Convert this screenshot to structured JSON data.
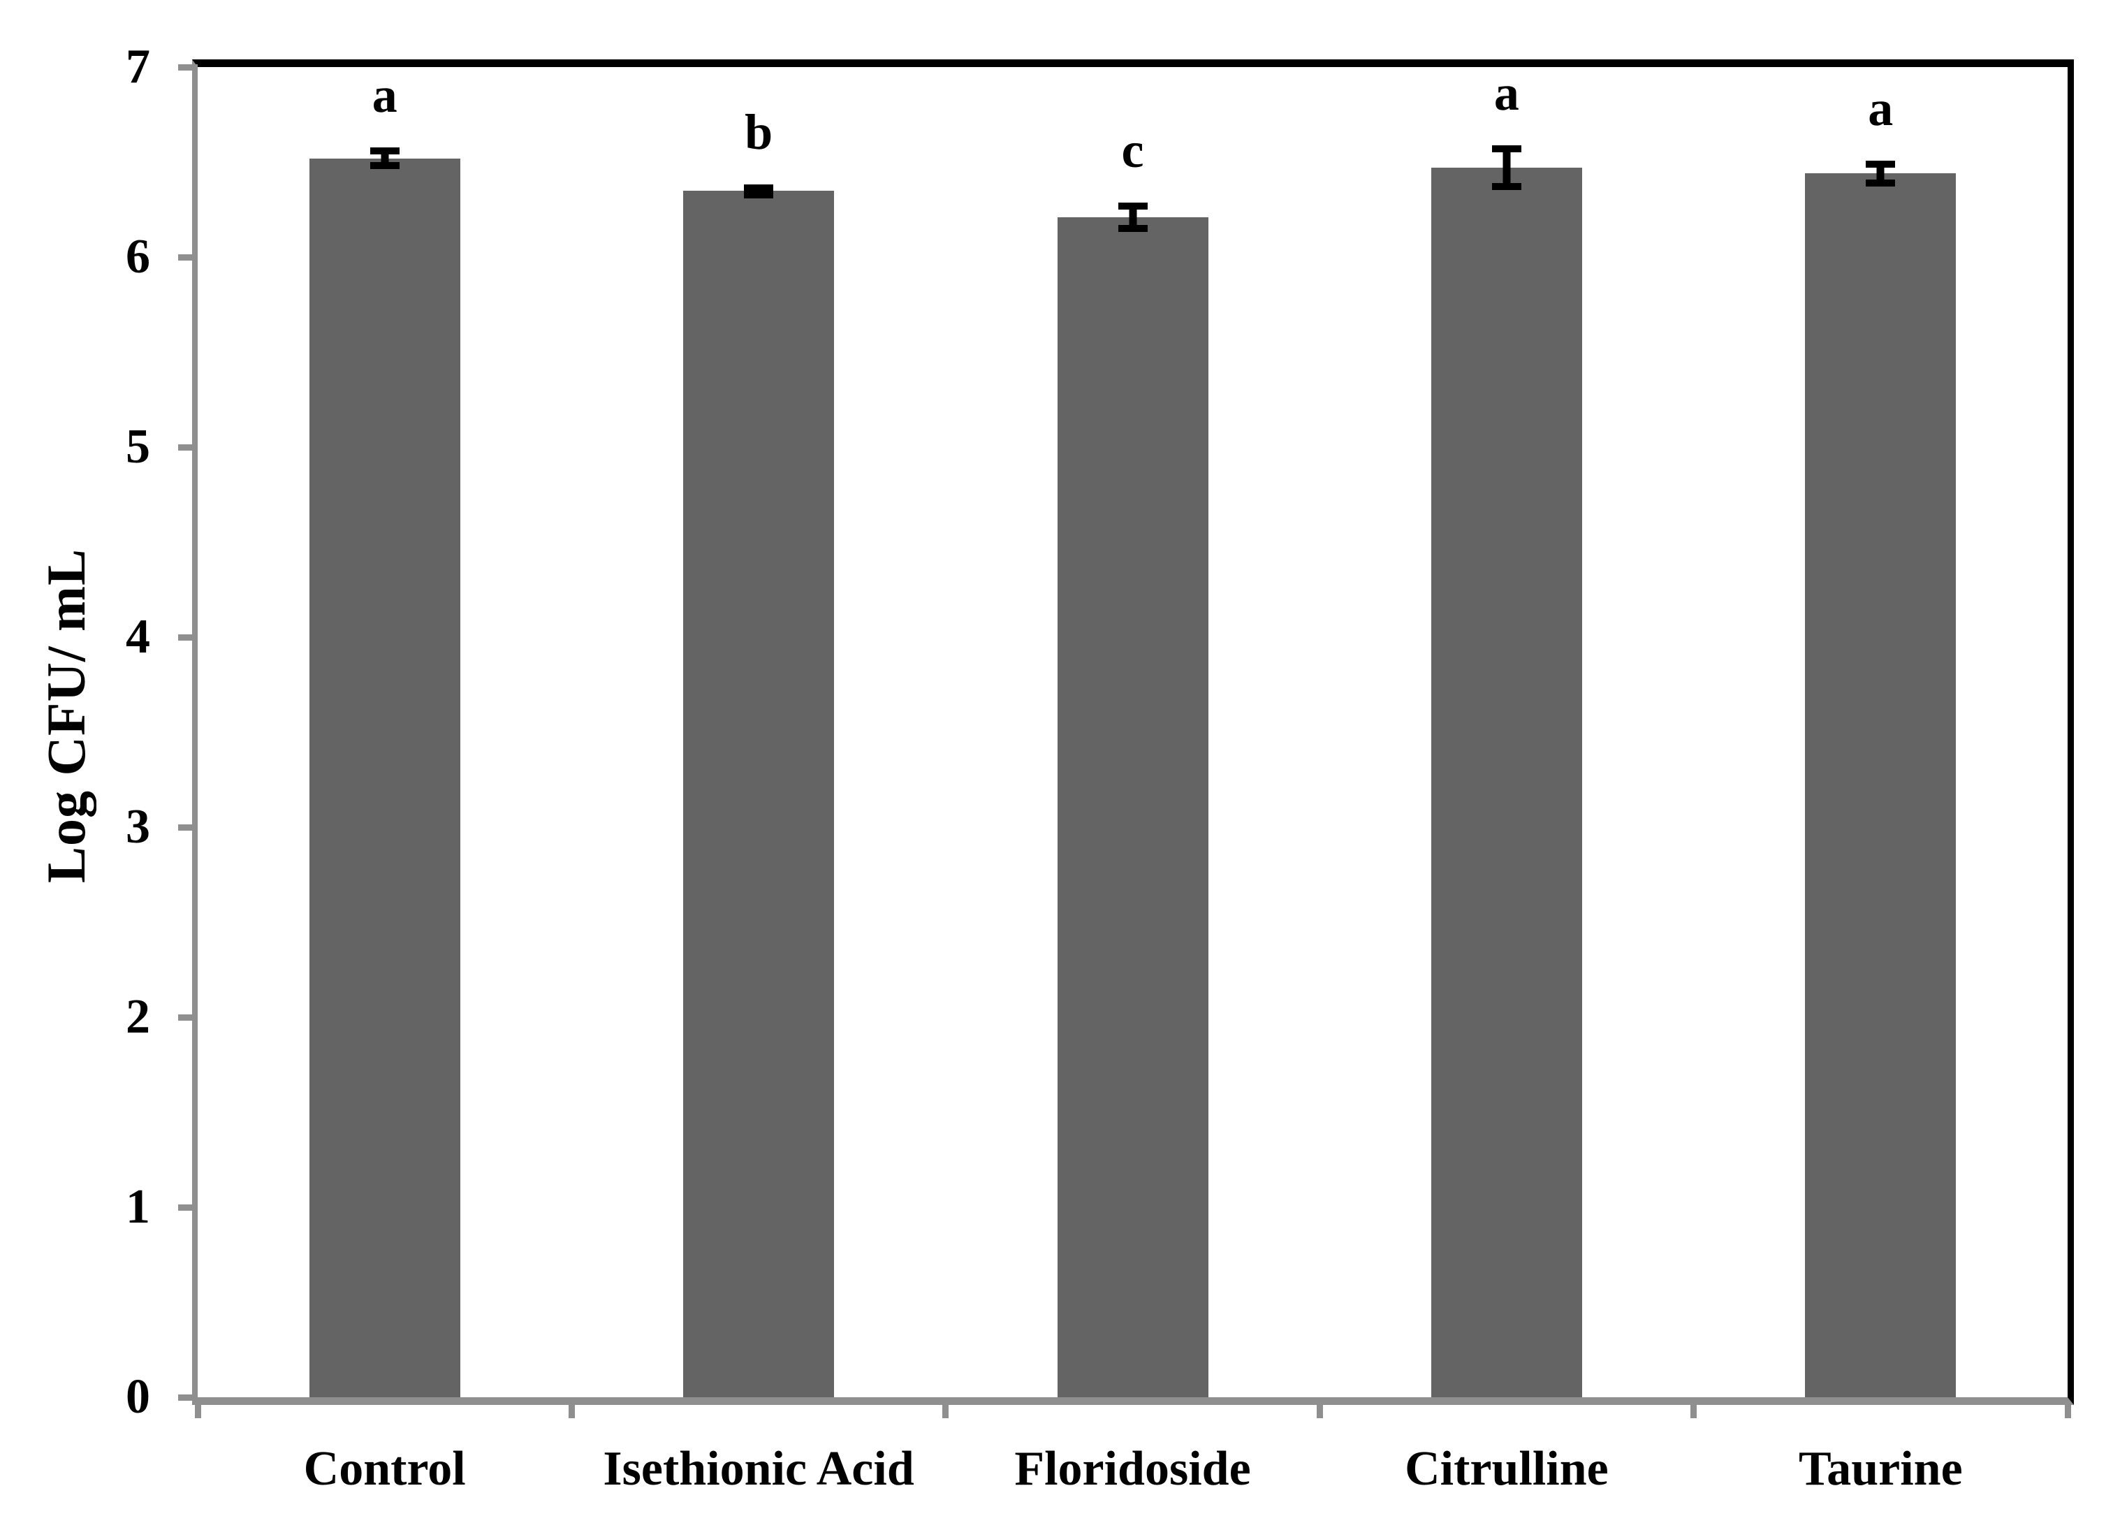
{
  "chart_data": {
    "type": "bar",
    "title": "",
    "xlabel": "",
    "ylabel": "Log CFU/ mL",
    "ylim": [
      0,
      7
    ],
    "yticks": [
      0,
      1,
      2,
      3,
      4,
      5,
      6,
      7
    ],
    "categories": [
      "Control",
      "Isethionic Acid",
      "Floridoside",
      "Citrulline",
      "Taurine"
    ],
    "values": [
      6.52,
      6.35,
      6.21,
      6.47,
      6.44
    ],
    "error_bars": [
      0.04,
      0.015,
      0.06,
      0.1,
      0.05
    ],
    "significance_letters": [
      "a",
      "b",
      "c",
      "a",
      "a"
    ],
    "grid": false,
    "legend": "none",
    "colors": {
      "bar_fill": "#646464",
      "axis_line": "#8f8f8f",
      "plot_border": "#000000",
      "error_bar": "#000000",
      "text": "#000000",
      "background": "#ffffff"
    }
  }
}
